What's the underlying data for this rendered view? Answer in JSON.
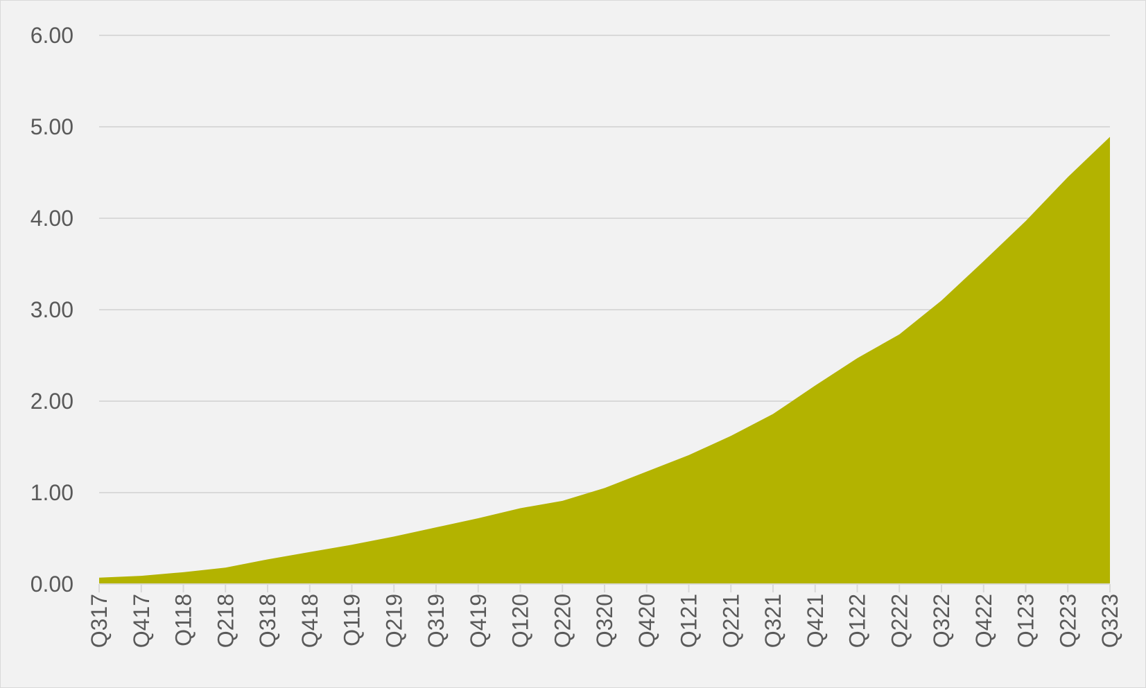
{
  "chart_data": {
    "type": "area",
    "categories": [
      "Q317",
      "Q417",
      "Q118",
      "Q218",
      "Q318",
      "Q418",
      "Q119",
      "Q219",
      "Q319",
      "Q419",
      "Q120",
      "Q220",
      "Q320",
      "Q420",
      "Q121",
      "Q221",
      "Q321",
      "Q421",
      "Q122",
      "Q222",
      "Q322",
      "Q422",
      "Q123",
      "Q223",
      "Q323"
    ],
    "series": [
      {
        "values": [
          0.07,
          0.09,
          0.13,
          0.18,
          0.27,
          0.35,
          0.43,
          0.52,
          0.62,
          0.72,
          0.83,
          0.91,
          1.05,
          1.23,
          1.41,
          1.62,
          1.86,
          2.17,
          2.47,
          2.73,
          3.1,
          3.53,
          3.97,
          4.45,
          4.89
        ]
      }
    ],
    "ylim": [
      0,
      6
    ],
    "yticks": [
      "0.00",
      "1.00",
      "2.00",
      "3.00",
      "4.00",
      "5.00",
      "6.00"
    ],
    "grid": true,
    "colors": {
      "fill": "#b3b300",
      "gridline": "#d9d9d9",
      "background": "#f2f2f2",
      "axis": "#d9d9d9",
      "text": "#595959"
    }
  }
}
